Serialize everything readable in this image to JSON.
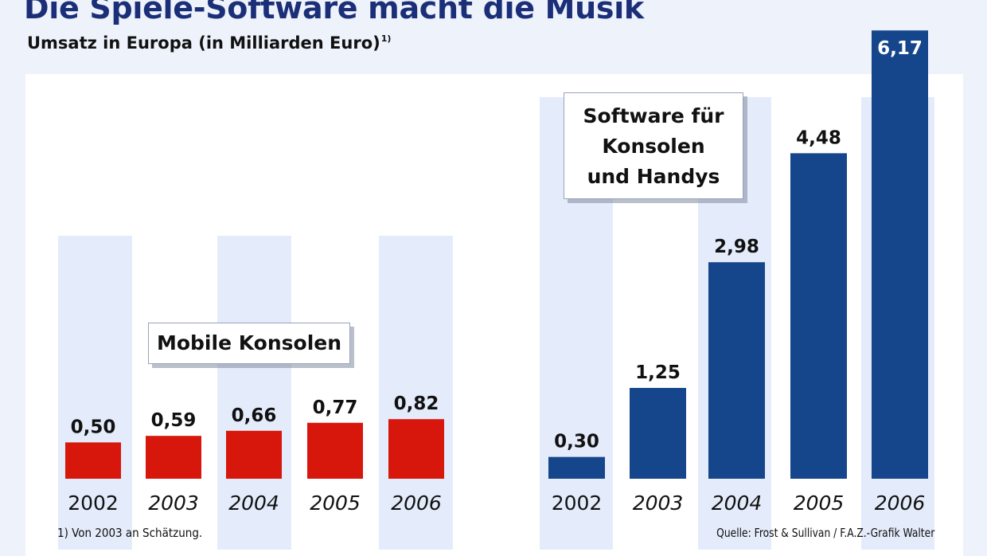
{
  "title": "Die Spiele-Software macht die Musik",
  "subtitle": "Umsatz in Europa (in Milliarden Euro)",
  "subtitle_footnote_mark": "1)",
  "footnote": "1) Von 2003 an Schätzung.",
  "source": "Quelle: Frost & Sullivan / F.A.Z.-Grafik Walter",
  "colors": {
    "mobile": "#d8170c",
    "software": "#15468c",
    "column_bg": "#e4ebfa",
    "title": "#1b2f78"
  },
  "chart_data": [
    {
      "type": "bar",
      "title": "Mobile Konsolen",
      "categories": [
        "2002",
        "2003",
        "2004",
        "2005",
        "2006"
      ],
      "values": [
        0.5,
        0.59,
        0.66,
        0.77,
        0.82
      ],
      "value_labels": [
        "0,50",
        "0,59",
        "0,66",
        "0,77",
        "0,82"
      ],
      "ylim": [
        0,
        6.5
      ],
      "xlabel": "",
      "ylabel": ""
    },
    {
      "type": "bar",
      "title": "Software für Konsolen und Handys",
      "title_lines": [
        "Software für",
        "Konsolen",
        "und Handys"
      ],
      "categories": [
        "2002",
        "2003",
        "2004",
        "2005",
        "2006"
      ],
      "values": [
        0.3,
        1.25,
        2.98,
        4.48,
        6.17
      ],
      "value_labels": [
        "0,30",
        "1,25",
        "2,98",
        "4,48",
        "6,17"
      ],
      "ylim": [
        0,
        6.5
      ],
      "xlabel": "",
      "ylabel": ""
    }
  ]
}
